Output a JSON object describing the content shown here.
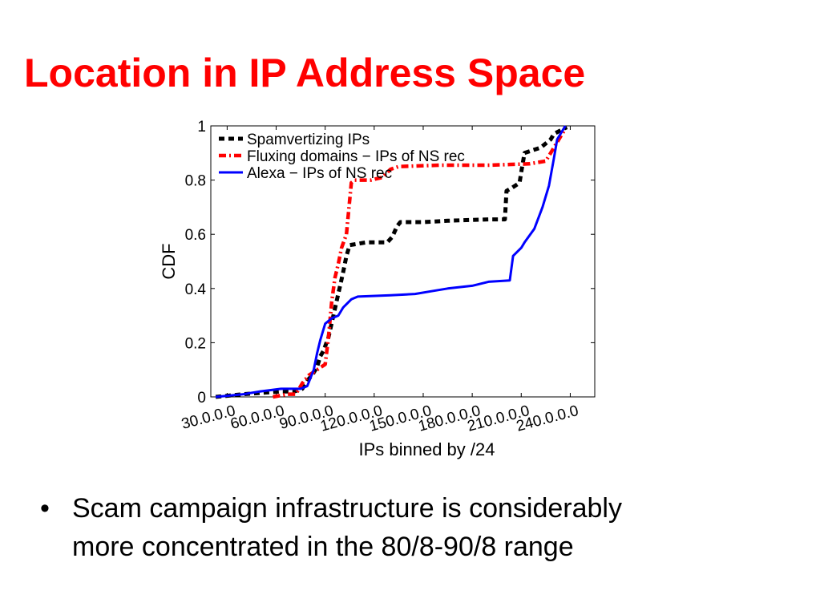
{
  "slide": {
    "title": "Location in IP Address Space",
    "bullet_char": "•",
    "bullet_lines": [
      "Scam campaign infrastructure is considerably",
      "more concentrated in the 80/8-90/8 range"
    ],
    "title_color": "#ff0000"
  },
  "chart_data": {
    "type": "line",
    "title": "",
    "xlabel": "IPs binned by /24",
    "ylabel": "CDF",
    "xlim": [
      20,
      255
    ],
    "ylim": [
      0,
      1
    ],
    "x_ticks": [
      30,
      60,
      90,
      120,
      150,
      180,
      210,
      240
    ],
    "x_tick_labels": [
      "30.0.0.0",
      "60.0.0.0",
      "90.0.0.0",
      "120.0.0.0",
      "150.0.0.0",
      "180.0.0.0",
      "210.0.0.0",
      "240.0.0.0"
    ],
    "y_ticks": [
      0,
      0.2,
      0.4,
      0.6,
      0.8,
      1
    ],
    "y_tick_labels": [
      "0",
      "0.2",
      "0.4",
      "0.6",
      "0.8",
      "1"
    ],
    "grid": false,
    "legend_position": "top-left",
    "series": [
      {
        "name": "Spamvertizing IPs",
        "color": "#000000",
        "style": "dashed",
        "points": [
          [
            23,
            0
          ],
          [
            40,
            0.01
          ],
          [
            63,
            0.02
          ],
          [
            71,
            0.02
          ],
          [
            76,
            0.03
          ],
          [
            79,
            0.06
          ],
          [
            82,
            0.08
          ],
          [
            85,
            0.11
          ],
          [
            87,
            0.15
          ],
          [
            89,
            0.17
          ],
          [
            92,
            0.22
          ],
          [
            95,
            0.3
          ],
          [
            98,
            0.38
          ],
          [
            101,
            0.46
          ],
          [
            103,
            0.52
          ],
          [
            105,
            0.56
          ],
          [
            115,
            0.57
          ],
          [
            128,
            0.57
          ],
          [
            131,
            0.59
          ],
          [
            134,
            0.63
          ],
          [
            136,
            0.645
          ],
          [
            150,
            0.645
          ],
          [
            165,
            0.65
          ],
          [
            190,
            0.655
          ],
          [
            200,
            0.655
          ],
          [
            201,
            0.76
          ],
          [
            204,
            0.77
          ],
          [
            209,
            0.79
          ],
          [
            210,
            0.83
          ],
          [
            212,
            0.9
          ],
          [
            222,
            0.92
          ],
          [
            228,
            0.95
          ],
          [
            230,
            0.97
          ],
          [
            236,
            0.99
          ],
          [
            238,
            0.995
          ]
        ]
      },
      {
        "name": "Fluxing domains − IPs of NS rec",
        "color": "#ff0000",
        "style": "dashdot",
        "points": [
          [
            58,
            0
          ],
          [
            67,
            0.01
          ],
          [
            72,
            0.01
          ],
          [
            76,
            0.05
          ],
          [
            80,
            0.08
          ],
          [
            85,
            0.1
          ],
          [
            90,
            0.12
          ],
          [
            92,
            0.22
          ],
          [
            94,
            0.35
          ],
          [
            96,
            0.44
          ],
          [
            98,
            0.49
          ],
          [
            100,
            0.55
          ],
          [
            103,
            0.6
          ],
          [
            106,
            0.79
          ],
          [
            108,
            0.8
          ],
          [
            118,
            0.8
          ],
          [
            125,
            0.81
          ],
          [
            130,
            0.84
          ],
          [
            135,
            0.85
          ],
          [
            160,
            0.855
          ],
          [
            190,
            0.855
          ],
          [
            215,
            0.86
          ],
          [
            225,
            0.87
          ],
          [
            228,
            0.9
          ],
          [
            232,
            0.94
          ],
          [
            236,
            0.98
          ]
        ]
      },
      {
        "name": "Alexa − IPs of NS rec",
        "color": "#0000ff",
        "style": "solid",
        "points": [
          [
            23,
            0
          ],
          [
            40,
            0.01
          ],
          [
            50,
            0.02
          ],
          [
            63,
            0.03
          ],
          [
            75,
            0.03
          ],
          [
            79,
            0.04
          ],
          [
            83,
            0.1
          ],
          [
            85,
            0.16
          ],
          [
            87,
            0.21
          ],
          [
            90,
            0.27
          ],
          [
            94,
            0.29
          ],
          [
            98,
            0.3
          ],
          [
            101,
            0.33
          ],
          [
            106,
            0.36
          ],
          [
            110,
            0.37
          ],
          [
            130,
            0.375
          ],
          [
            145,
            0.38
          ],
          [
            155,
            0.39
          ],
          [
            165,
            0.4
          ],
          [
            180,
            0.41
          ],
          [
            190,
            0.425
          ],
          [
            203,
            0.43
          ],
          [
            205,
            0.52
          ],
          [
            210,
            0.55
          ],
          [
            212,
            0.57
          ],
          [
            218,
            0.62
          ],
          [
            223,
            0.7
          ],
          [
            227,
            0.78
          ],
          [
            230,
            0.88
          ],
          [
            232,
            0.95
          ],
          [
            235,
            0.98
          ],
          [
            237,
            1.0
          ]
        ]
      }
    ]
  }
}
